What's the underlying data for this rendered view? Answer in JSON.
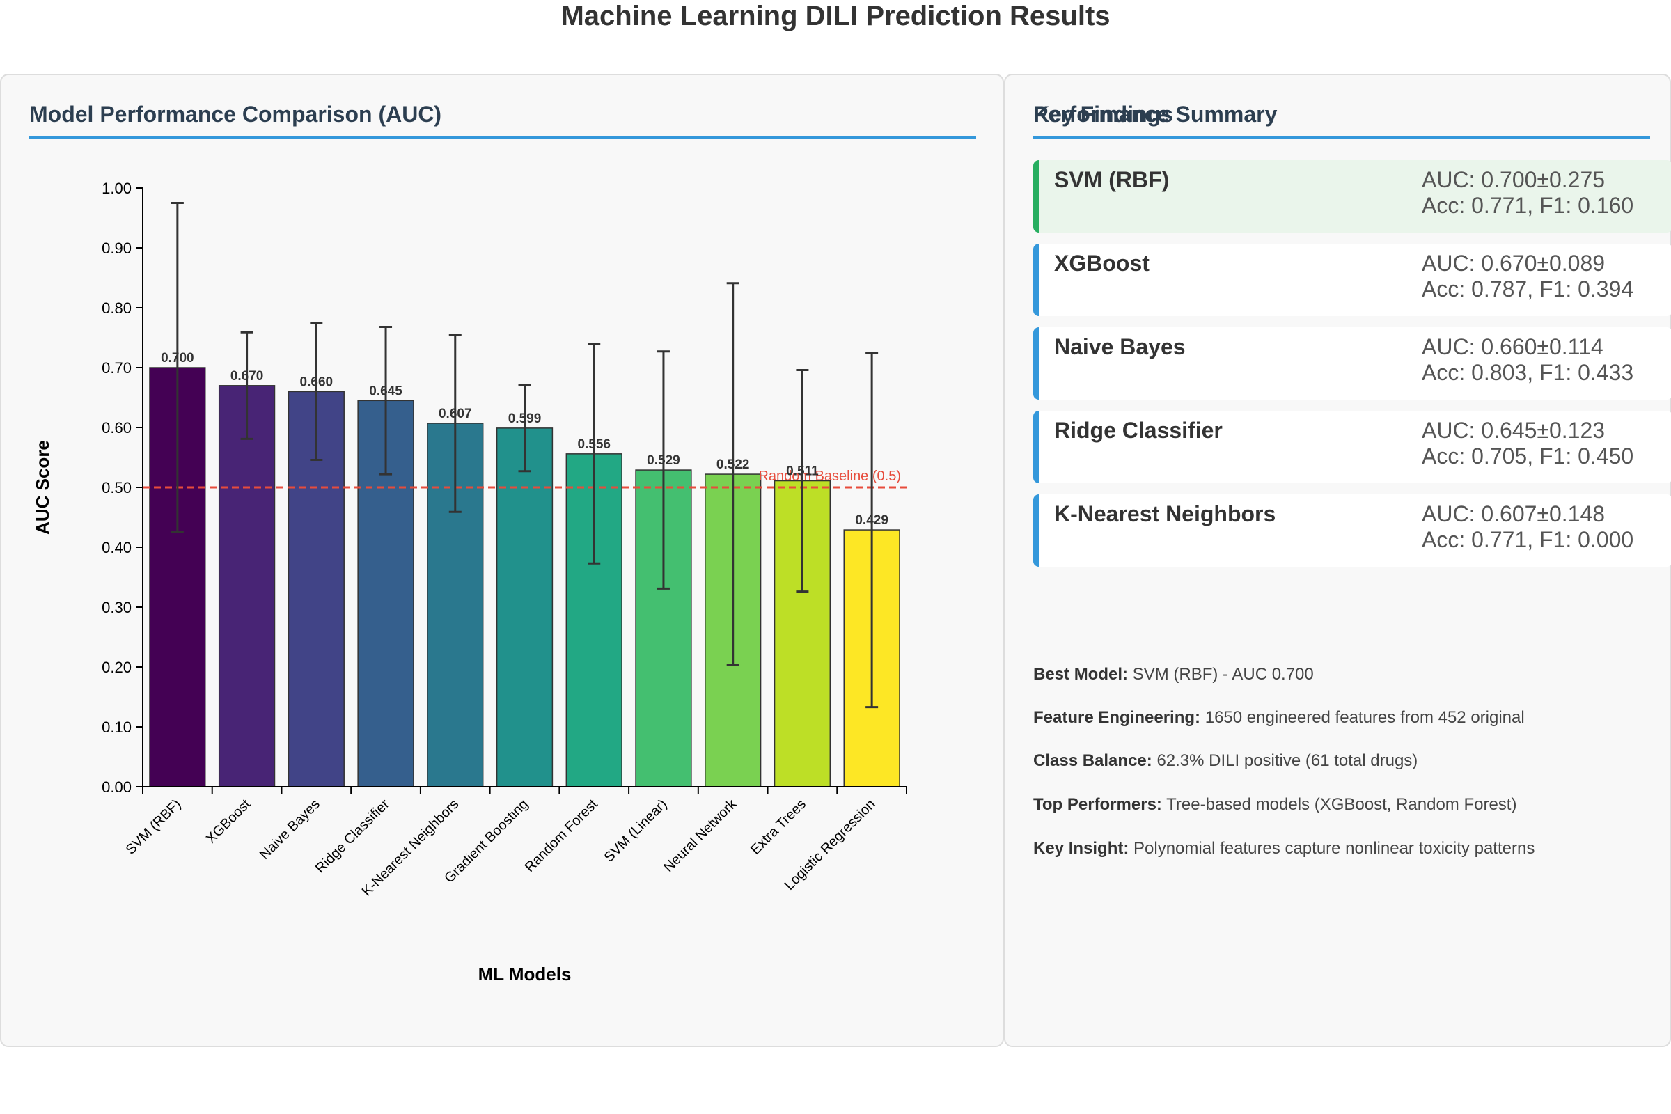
{
  "page_title": "Machine Learning DILI Prediction Results",
  "chart_panel": {
    "heading": "Model Performance Comparison (AUC)"
  },
  "summary_panel": {
    "heading": "Performance Summary",
    "best_color": "#27ae60",
    "accent_color": "#3498db",
    "cards": [
      {
        "name": "SVM (RBF)",
        "auc": "AUC: 0.700±0.275",
        "acc": "Acc: 0.771, F1: 0.160"
      },
      {
        "name": "XGBoost",
        "auc": "AUC: 0.670±0.089",
        "acc": "Acc: 0.787, F1: 0.394"
      },
      {
        "name": "Naive Bayes",
        "auc": "AUC: 0.660±0.114",
        "acc": "Acc: 0.803, F1: 0.433"
      },
      {
        "name": "Ridge Classifier",
        "auc": "AUC: 0.645±0.123",
        "acc": "Acc: 0.705, F1: 0.450"
      },
      {
        "name": "K-Nearest Neighbors",
        "auc": "AUC: 0.607±0.148",
        "acc": "Acc: 0.771, F1: 0.000"
      }
    ]
  },
  "findings": {
    "heading": "Key Findings",
    "items": [
      {
        "label": "Best Model:",
        "text": "SVM (RBF) - AUC 0.700"
      },
      {
        "label": "Feature Engineering:",
        "text": "1650 engineered features from 452 original"
      },
      {
        "label": "Class Balance:",
        "text": "62.3% DILI positive (61 total drugs)"
      },
      {
        "label": "Top Performers:",
        "text": "Tree-based models (XGBoost, Random Forest)"
      },
      {
        "label": "Key Insight:",
        "text": "Polynomial features capture nonlinear toxicity patterns"
      }
    ]
  },
  "chart_data": {
    "type": "bar",
    "categories": [
      "SVM (RBF)",
      "XGBoost",
      "Naive Bayes",
      "Ridge Classifier",
      "K-Nearest Neighbors",
      "Gradient Boosting",
      "Random Forest",
      "SVM (Linear)",
      "Neural Network",
      "Extra Trees",
      "Logistic Regression"
    ],
    "values": [
      0.7,
      0.67,
      0.66,
      0.645,
      0.607,
      0.599,
      0.556,
      0.529,
      0.522,
      0.511,
      0.429
    ],
    "value_labels": [
      "0.700",
      "0.670",
      "0.660",
      "0.645",
      "0.607",
      "0.599",
      "0.556",
      "0.529",
      "0.522",
      "0.511",
      "0.429"
    ],
    "errors": [
      0.275,
      0.089,
      0.114,
      0.123,
      0.148,
      0.072,
      0.183,
      0.198,
      0.319,
      0.185,
      0.296
    ],
    "colors": [
      "#440154",
      "#482475",
      "#414487",
      "#355f8d",
      "#2a788e",
      "#21918c",
      "#22a884",
      "#44bf70",
      "#7ad151",
      "#bddf26",
      "#fde725"
    ],
    "xlabel": "ML Models",
    "ylabel": "AUC Score",
    "ylim": [
      0,
      1
    ],
    "yticks": [
      "0.00",
      "0.10",
      "0.20",
      "0.30",
      "0.40",
      "0.50",
      "0.60",
      "0.70",
      "0.80",
      "0.90",
      "1.00"
    ],
    "baseline": {
      "value": 0.5,
      "label": "Random Baseline (0.5)",
      "color": "#e74c3c"
    },
    "grid": false,
    "legend": "none"
  }
}
